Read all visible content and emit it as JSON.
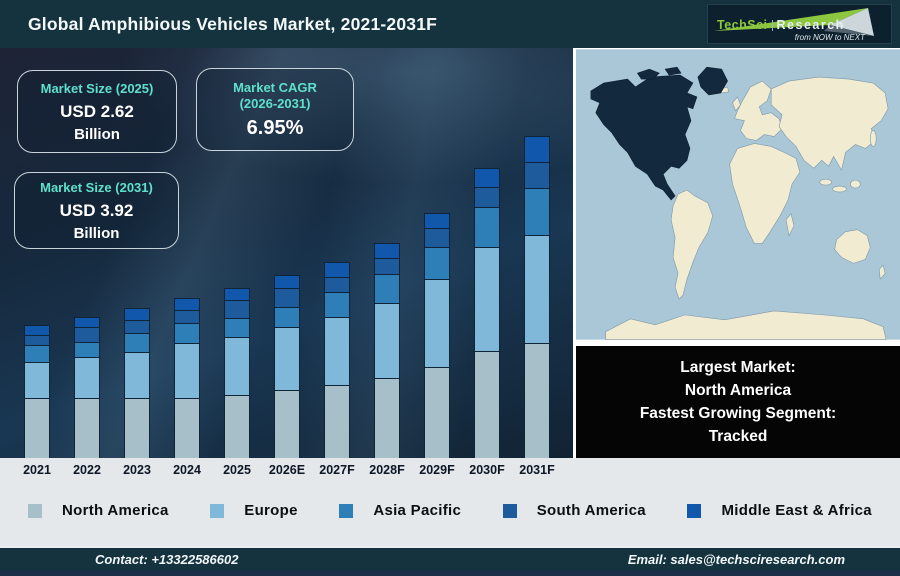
{
  "header": {
    "title": "Global Amphibious Vehicles Market, 2021-2031F",
    "logo": {
      "brand_primary": "TechSci",
      "brand_secondary": "Research",
      "tagline": "from NOW to NEXT"
    }
  },
  "info_boxes": [
    {
      "title": "Market Size (2025)",
      "value": "USD 2.62",
      "unit": "Billion"
    },
    {
      "title": "Market CAGR",
      "title_line2": "(2026-2031)",
      "value": "6.95%"
    },
    {
      "title": "Market Size (2031)",
      "value": "USD 3.92",
      "unit": "Billion"
    }
  ],
  "chart_data": {
    "type": "bar",
    "stacked": true,
    "title": "Global Amphibious Vehicles Market, 2021-2031F",
    "categories": [
      "2021",
      "2022",
      "2023",
      "2024",
      "2025",
      "2026E",
      "2027F",
      "2028F",
      "2029F",
      "2030F",
      "2031F"
    ],
    "series": [
      {
        "name": "North America",
        "color": "#a7bfc9",
        "values": [
          60,
          60,
          60,
          60,
          63,
          68,
          73,
          80,
          91,
          107,
          115
        ]
      },
      {
        "name": "Europe",
        "color": "#7fb8d9",
        "values": [
          36,
          41,
          46,
          55,
          58,
          63,
          68,
          75,
          88,
          104,
          108
        ]
      },
      {
        "name": "Asia Pacific",
        "color": "#2e7eb8",
        "values": [
          17,
          15,
          19,
          20,
          19,
          20,
          25,
          29,
          32,
          40,
          47
        ]
      },
      {
        "name": "South America",
        "color": "#1e5b9c",
        "values": [
          10,
          15,
          13,
          13,
          18,
          19,
          15,
          16,
          19,
          20,
          26
        ]
      },
      {
        "name": "Middle East & Africa",
        "color": "#1157ab",
        "values": [
          10,
          10,
          12,
          12,
          12,
          13,
          15,
          15,
          15,
          19,
          26
        ]
      }
    ],
    "units": "relative height units (no y-axis shown); stated figures: USD 2.62 Billion (2025), USD 3.92 Billion (2031), CAGR 6.95% (2026-2031)",
    "xlabel": "",
    "ylabel": "",
    "grid": false,
    "legend_position": "bottom"
  },
  "map": {
    "highlight_region": "North America"
  },
  "callout": {
    "lines": [
      "Largest Market:",
      "North America",
      "Fastest Growing Segment:",
      "Tracked"
    ]
  },
  "legend": {
    "items": [
      {
        "label": "North America",
        "color": "#a7bfc9"
      },
      {
        "label": "Europe",
        "color": "#7fb8d9"
      },
      {
        "label": "Asia Pacific",
        "color": "#2e7eb8"
      },
      {
        "label": "South America",
        "color": "#1e5b9c"
      },
      {
        "label": "Middle East & Africa",
        "color": "#1157ab"
      }
    ]
  },
  "footer": {
    "contact": "Contact: +13322586602",
    "email": "Email: sales@techsciresearch.com"
  },
  "colors": {
    "header_bg": "#14333f",
    "accent_teal": "#5fe0cd",
    "strip_bg": "#e4e8ea",
    "callout_bg": "#050505",
    "map_ocean": "#a9c7d7",
    "map_land": "#f1ebd1",
    "map_highlight": "#13293d",
    "logo_green": "#8dc63f",
    "bottom_strip": "#1d2e4a"
  }
}
